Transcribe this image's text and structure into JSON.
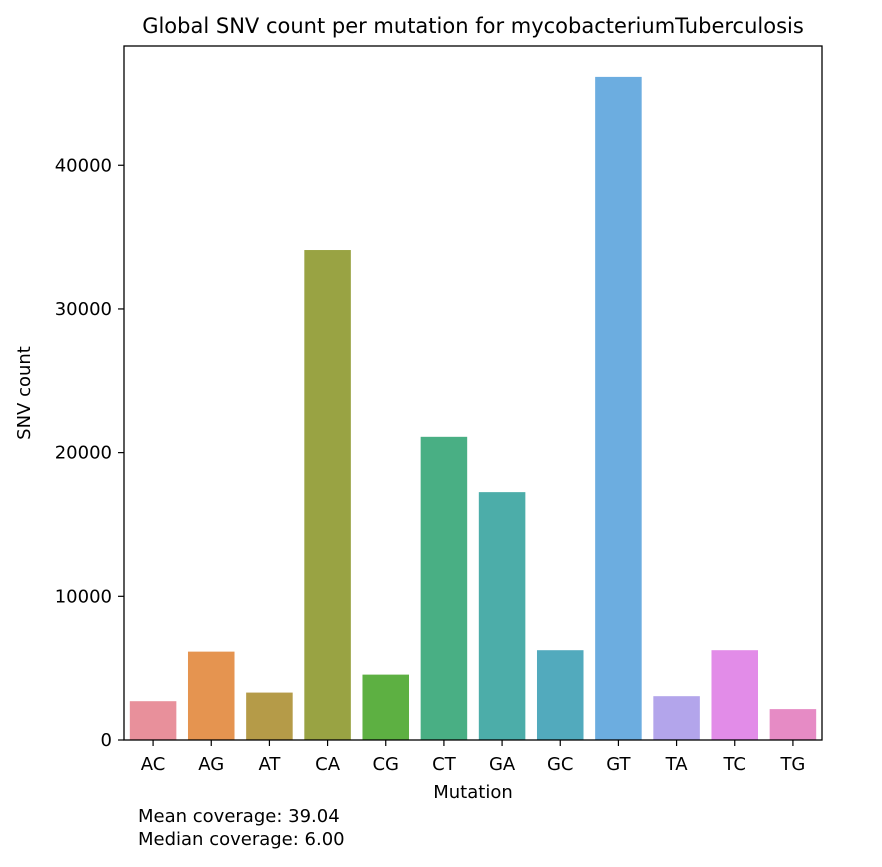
{
  "chart_data": {
    "type": "bar",
    "title": "Global SNV count per mutation for mycobacteriumTuberculosis",
    "xlabel": "Mutation",
    "ylabel": "SNV count",
    "categories": [
      "AC",
      "AG",
      "AT",
      "CA",
      "CG",
      "CT",
      "GA",
      "GC",
      "GT",
      "TA",
      "TC",
      "TG"
    ],
    "values": [
      2700,
      6150,
      3300,
      34100,
      4550,
      21100,
      17250,
      6250,
      46150,
      3050,
      6250,
      2150
    ],
    "colors": [
      "#E8909B",
      "#E59450",
      "#B59B48",
      "#99A343",
      "#5DB042",
      "#49AF84",
      "#4CADA9",
      "#52AABD",
      "#6CADE0",
      "#B3A5EB",
      "#E28CE8",
      "#E68BC5"
    ],
    "ylim": [
      0,
      48300
    ],
    "yticks": [
      0,
      10000,
      20000,
      30000,
      40000
    ],
    "grid": false,
    "legend": "none"
  },
  "footnotes": {
    "mean": "Mean coverage: 39.04",
    "median": "Median coverage: 6.00"
  }
}
